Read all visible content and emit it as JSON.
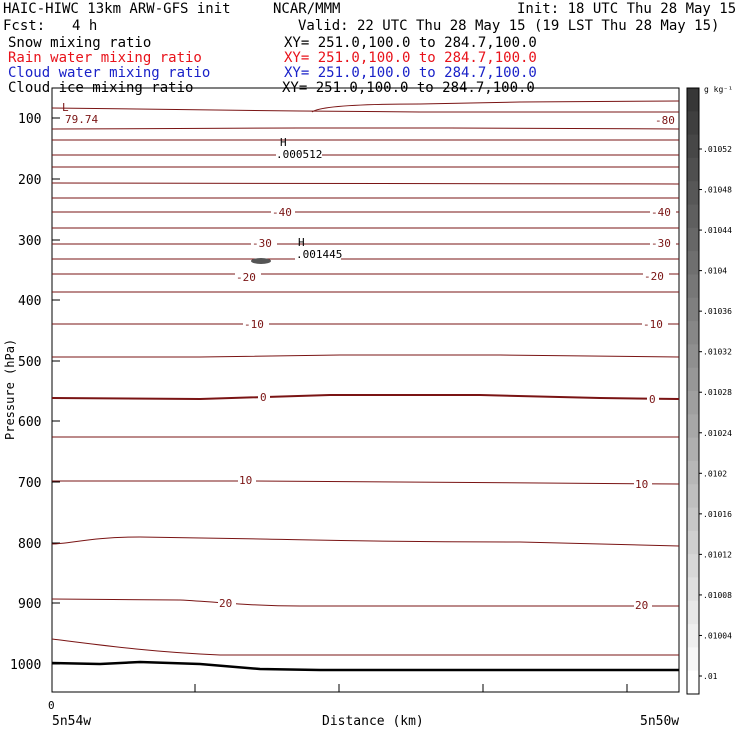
{
  "header": {
    "title": "HAIC-HIWC 13km ARW-GFS init",
    "org": "NCAR/MMM",
    "init": "Init: 18 UTC Thu 28 May 15",
    "fcst_label": "Fcst:",
    "fcst_value": "4 h",
    "valid": "Valid: 22 UTC Thu 28 May 15 (19 LST Thu 28 May 15)"
  },
  "fields": [
    {
      "name": "Snow mixing ratio",
      "xy": "XY= 251.0,100.0 to 284.7,100.0",
      "color": "#000000"
    },
    {
      "name": "Rain water mixing ratio",
      "xy": "XY= 251.0,100.0 to 284.7,100.0",
      "color": "#e8121a"
    },
    {
      "name": "Cloud water mixing ratio",
      "xy": "XY= 251.0,100.0 to 284.7,100.0",
      "color": "#1a22c8"
    },
    {
      "name": "Cloud ice mixing ratio",
      "xy": "XY= 251.0,100.0 to 284.7,100.0",
      "color": "#000000"
    }
  ],
  "chart_data": {
    "type": "contour",
    "ylabel": "Pressure (hPa)",
    "xlabel": "Distance (km)",
    "x_tick_label": "0",
    "x_start_label": "5n54w",
    "x_end_label": "5n50w",
    "y_ticks": [
      "100",
      "200",
      "300",
      "400",
      "500",
      "600",
      "700",
      "800",
      "900",
      "1000"
    ],
    "colorbar": {
      "unit": "g kg⁻¹",
      "labels": [
        ".01052",
        ".01048",
        ".01044",
        ".0104",
        ".01036",
        ".01032",
        ".01028",
        ".01024",
        ".0102",
        ".01016",
        ".01012",
        ".01008",
        ".01004",
        ".01"
      ]
    },
    "contour_labels": [
      "-80",
      "-40",
      "-40",
      "-30",
      "-30",
      "-20",
      "-20",
      "-10",
      "-10",
      "0",
      "0",
      "10",
      "10",
      "20",
      "20"
    ],
    "extrema": [
      {
        "marker": "L",
        "value": "79.74"
      },
      {
        "marker": "H",
        "value": ".000512"
      },
      {
        "marker": "H",
        "value": ".001445"
      }
    ]
  }
}
